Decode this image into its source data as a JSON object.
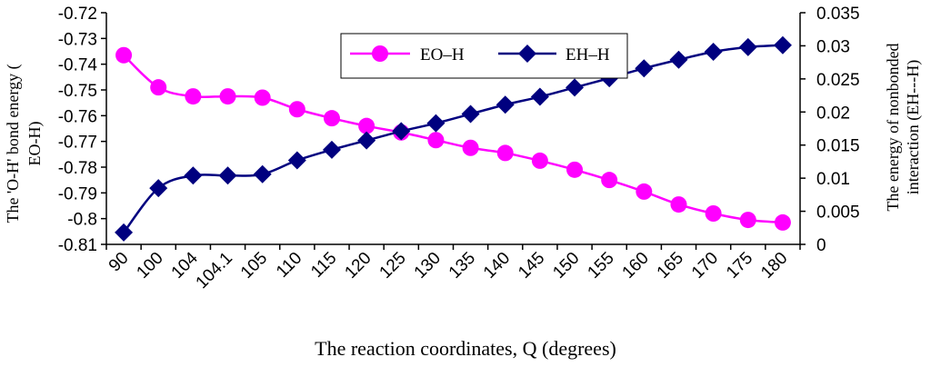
{
  "chart_data": {
    "type": "line",
    "xlabel": "The reaction coordinates, Q (degrees)",
    "ylabel_left": [
      "The 'O-H' bond energy (",
      "EO-H)"
    ],
    "ylabel_right": [
      "The energy of nonbonded",
      "interaction (EH---H)"
    ],
    "categories": [
      "90",
      "100",
      "104",
      "104.1",
      "105",
      "110",
      "115",
      "120",
      "125",
      "130",
      "135",
      "140",
      "145",
      "150",
      "155",
      "160",
      "165",
      "170",
      "175",
      "180"
    ],
    "y_left": {
      "min": -0.81,
      "max": -0.72,
      "step": 0.01,
      "ticks": [
        "-0.72",
        "-0.73",
        "-0.74",
        "-0.75",
        "-0.76",
        "-0.77",
        "-0.78",
        "-0.79",
        "-0.8",
        "-0.81"
      ]
    },
    "y_right": {
      "min": 0,
      "max": 0.035,
      "step": 0.005,
      "ticks": [
        "0.035",
        "0.03",
        "0.025",
        "0.02",
        "0.015",
        "0.01",
        "0.005",
        "0"
      ]
    },
    "series": [
      {
        "name": "EO–H",
        "axis": "left",
        "color": "#ff00ff",
        "marker": "circle",
        "values": [
          -0.7365,
          -0.749,
          -0.7525,
          -0.7525,
          -0.753,
          -0.7575,
          -0.761,
          -0.764,
          -0.7665,
          -0.7695,
          -0.7725,
          -0.7745,
          -0.7775,
          -0.781,
          -0.785,
          -0.7895,
          -0.7945,
          -0.798,
          -0.8005,
          -0.8015
        ]
      },
      {
        "name": "EH–H",
        "axis": "right",
        "color": "#00007f",
        "marker": "diamond",
        "values": [
          0.0018,
          0.0085,
          0.0104,
          0.0104,
          0.0106,
          0.0127,
          0.0143,
          0.0157,
          0.0171,
          0.0183,
          0.0197,
          0.0211,
          0.0223,
          0.0237,
          0.0251,
          0.0266,
          0.0279,
          0.0291,
          0.0298,
          0.0301
        ]
      }
    ],
    "legend": {
      "placement": "top-center",
      "border": true
    },
    "grid": false
  }
}
